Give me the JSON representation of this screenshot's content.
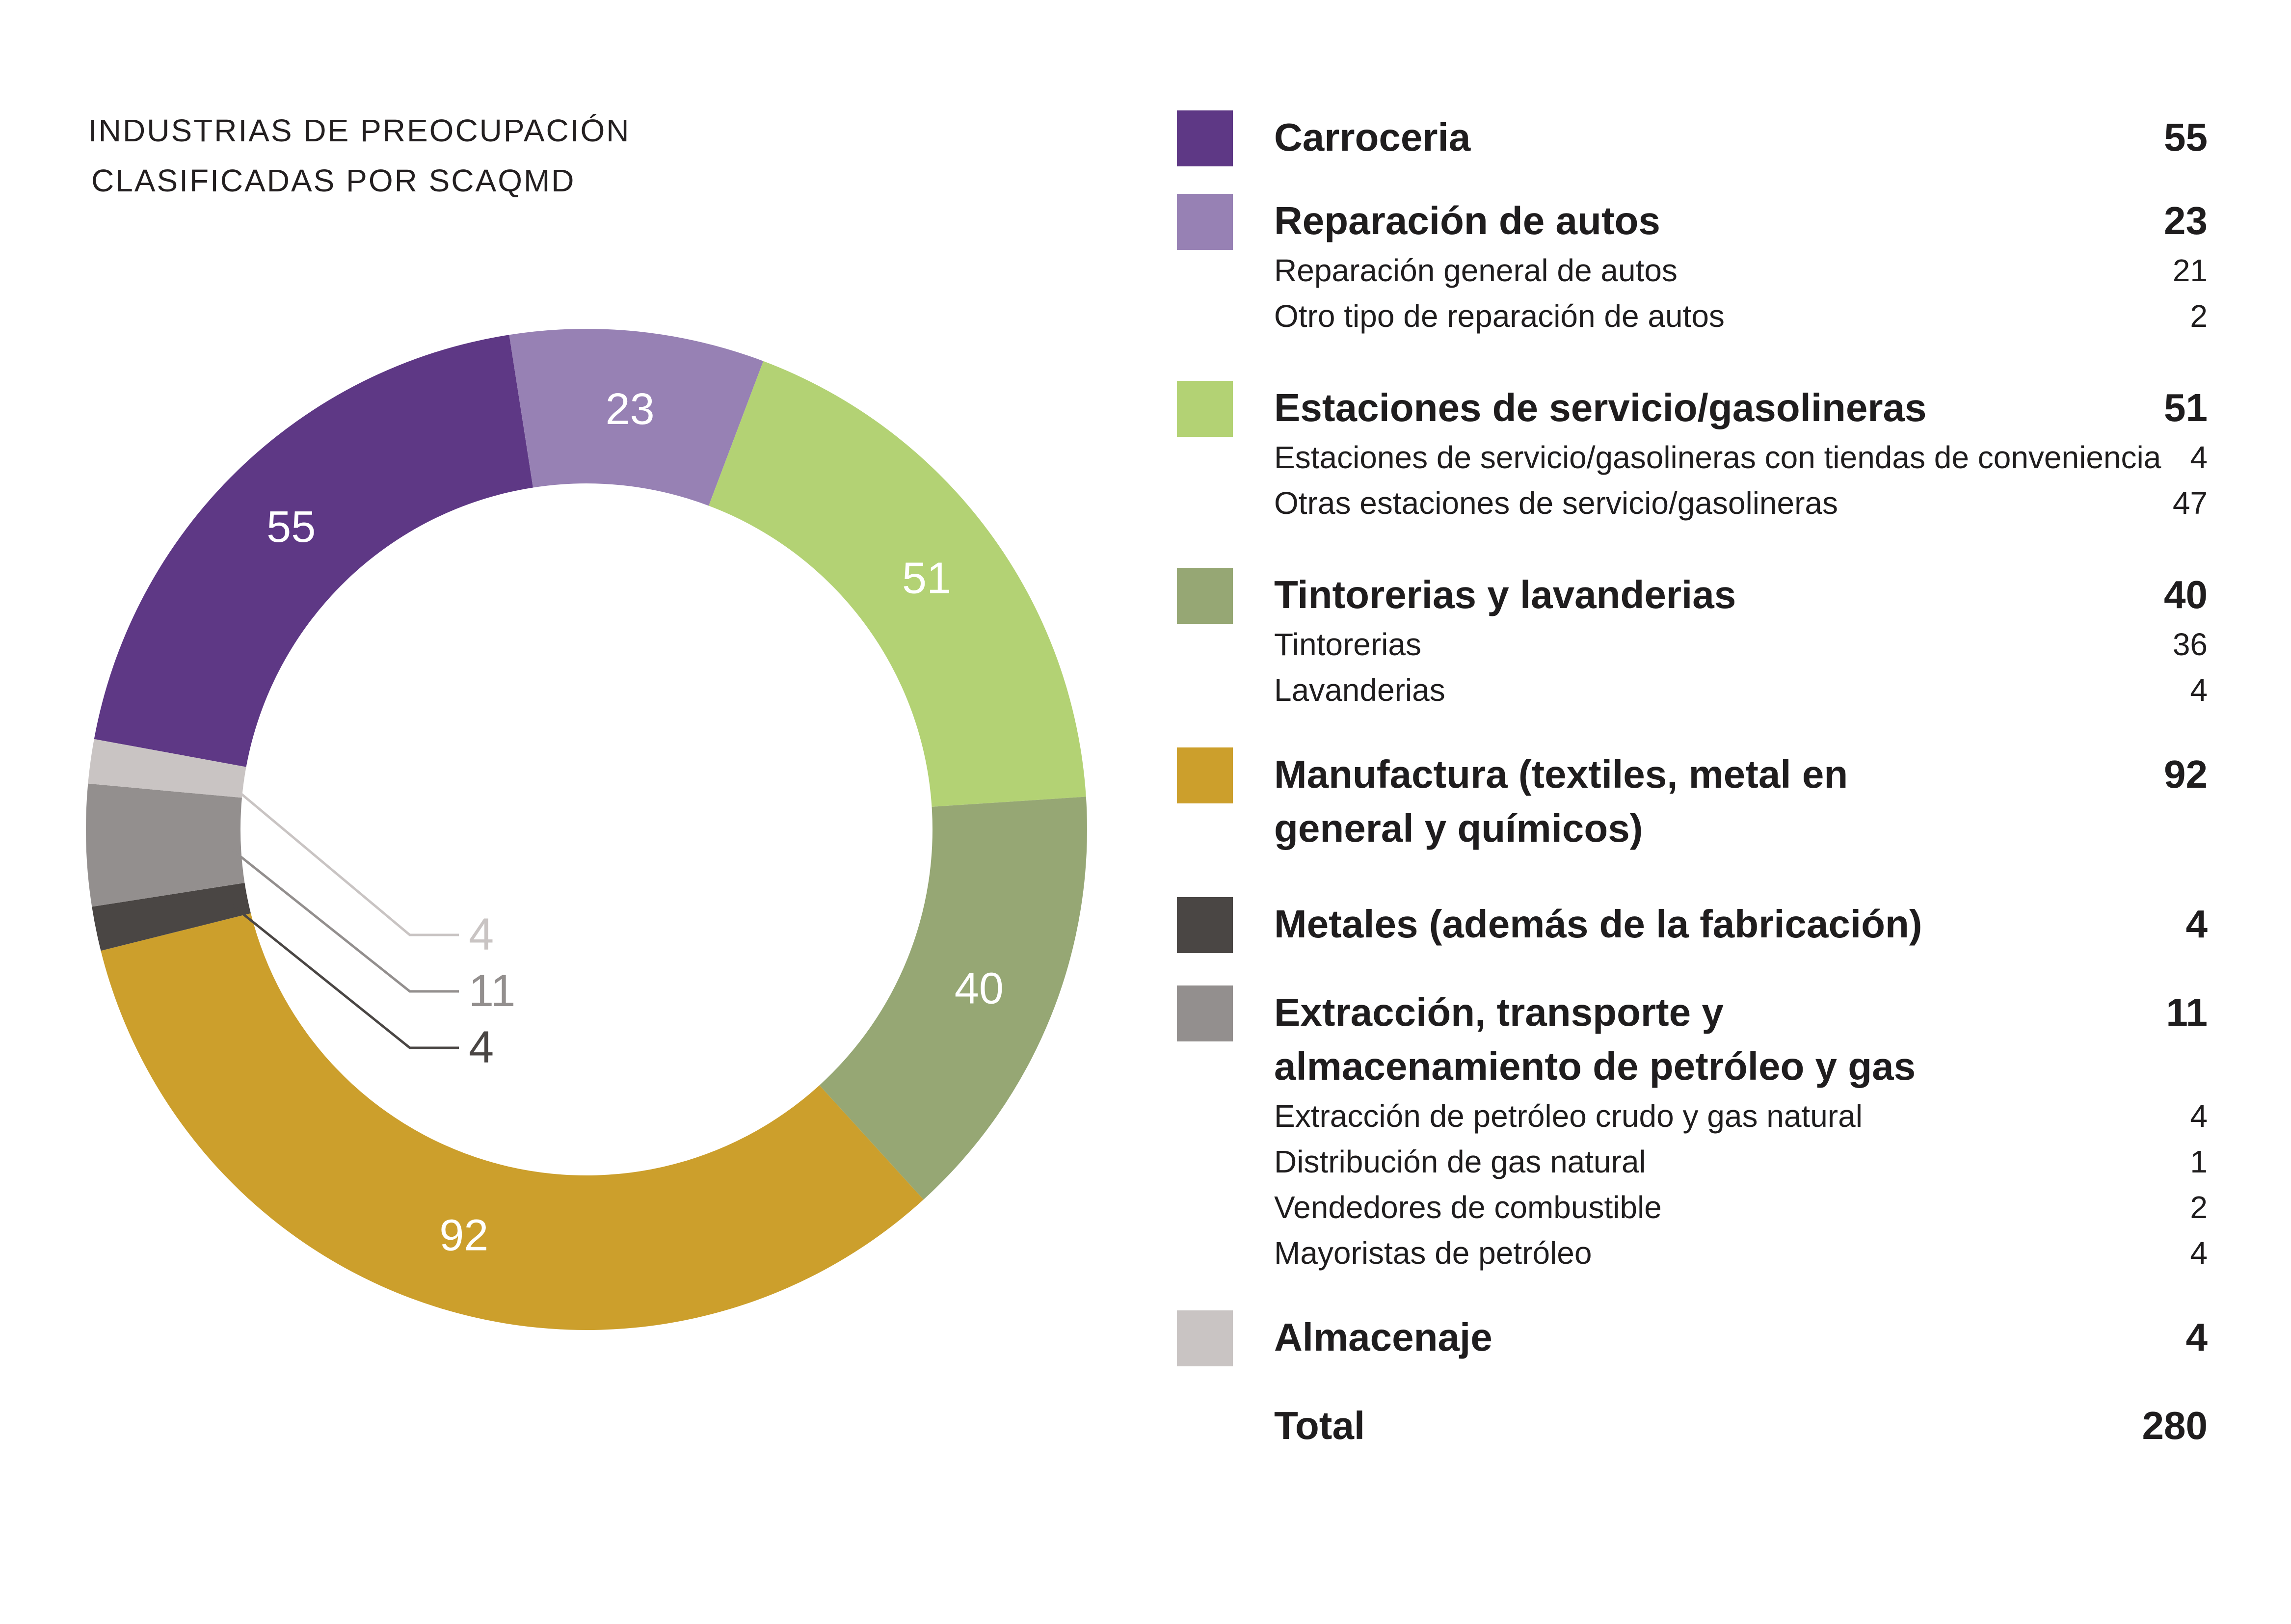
{
  "chart_data": {
    "type": "donut",
    "title_lines": [
      "INDUSTRIAS DE PREOCUPACIÓN",
      "CLASIFICADAS POR SCAQMD"
    ],
    "categories": [
      "Carroceria",
      "Reparación de autos",
      "Estaciones de servicio/gasolineras",
      "Tintorerias y lavanderias",
      "Manufactura (textiles, metal en general y químicos)",
      "Metales (además de la fabricación)",
      "Extracción, transporte y almacenamiento de petróleo y gas",
      "Almacenaje"
    ],
    "values": [
      55,
      23,
      51,
      40,
      92,
      4,
      11,
      4
    ],
    "colors": [
      "#5e3885",
      "#9781b4",
      "#b3d274",
      "#96a774",
      "#cc9f2c",
      "#4a4644",
      "#938f8e",
      "#c9c4c3"
    ],
    "slice_labels": [
      "55",
      "23",
      "51",
      "40",
      "92",
      "4",
      "11",
      "4"
    ],
    "outside_label_colors": {
      "5": "#4a4644",
      "6": "#938f8e",
      "7": "#c9c4c3"
    },
    "total": 280
  },
  "legend": {
    "categories": [
      {
        "label": "Carroceria",
        "value": "55",
        "color": "#5e3885",
        "subs": []
      },
      {
        "label": "Reparación de autos",
        "value": "23",
        "color": "#9781b4",
        "subs": [
          {
            "label": "Reparación general de autos",
            "value": "21"
          },
          {
            "label": "Otro tipo de reparación de autos",
            "value": "2"
          }
        ]
      },
      {
        "label": "Estaciones de servicio/gasolineras",
        "value": "51",
        "color": "#b3d274",
        "subs": [
          {
            "label": "Estaciones de servicio/gasolineras con tiendas de conveniencia",
            "value": "4"
          },
          {
            "label": "Otras estaciones de servicio/gasolineras",
            "value": "47"
          }
        ]
      },
      {
        "label": "Tintorerias y lavanderias",
        "value": "40",
        "color": "#96a774",
        "subs": [
          {
            "label": "Tintorerias",
            "value": "36"
          },
          {
            "label": "Lavanderias",
            "value": "4"
          }
        ]
      },
      {
        "label": "Manufactura (textiles, metal en general y químicos)",
        "value": "92",
        "color": "#cc9f2c",
        "subs": []
      },
      {
        "label": "Metales (además de la fabricación)",
        "value": "4",
        "color": "#4a4644",
        "subs": []
      },
      {
        "label": "Extracción, transporte y almacenamiento de petróleo y gas",
        "value": "11",
        "color": "#938f8e",
        "subs": [
          {
            "label": "Extracción de petróleo crudo y gas natural",
            "value": "4"
          },
          {
            "label": "Distribución de gas natural",
            "value": "1"
          },
          {
            "label": "Vendedores de combustible",
            "value": "2"
          },
          {
            "label": "Mayoristas de petróleo",
            "value": "4"
          }
        ]
      },
      {
        "label": "Almacenaje",
        "value": "4",
        "color": "#c9c4c3",
        "subs": []
      }
    ],
    "total_label": "Total",
    "total_value": "280"
  }
}
